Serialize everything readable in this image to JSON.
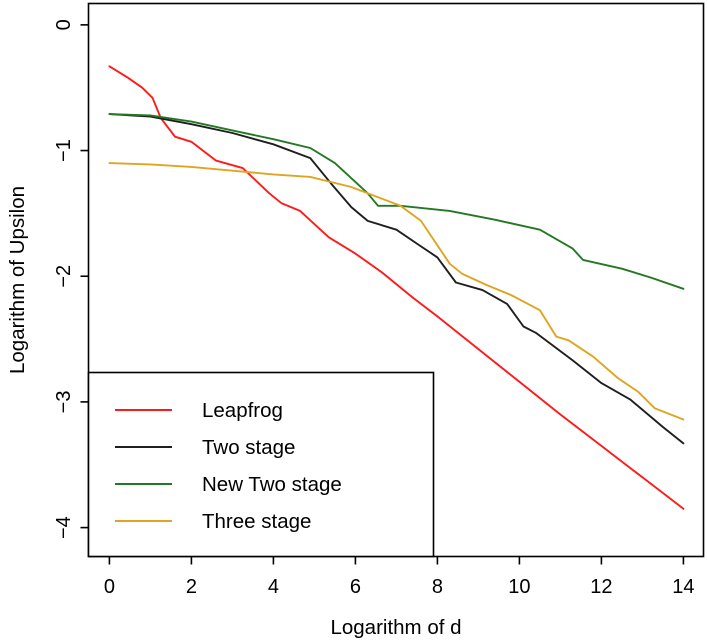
{
  "figure": {
    "background": "#ffffff",
    "axis_color": "#000000"
  },
  "chart_data": {
    "type": "line",
    "title": "",
    "xlabel": "Logarithm of d",
    "ylabel": "Logarithm of Upsilon",
    "xlim": [
      -0.51,
      14.49
    ],
    "ylim": [
      -4.23,
      0.17
    ],
    "grid": false,
    "xticks": {
      "values": [
        0,
        2,
        4,
        6,
        8,
        10,
        12,
        14
      ],
      "labels": [
        "0",
        "2",
        "4",
        "6",
        "8",
        "10",
        "12",
        "14"
      ]
    },
    "yticks": {
      "values": [
        0,
        -1,
        -2,
        -3,
        -4
      ],
      "labels": [
        "0",
        "−1",
        "−2",
        "−3",
        "−4"
      ]
    },
    "legend": {
      "position": "bottom-left",
      "border": true
    },
    "series": [
      {
        "name": "Leapfrog",
        "color": "#ff1a1a",
        "points": [
          [
            0,
            -0.33
          ],
          [
            0.45,
            -0.42
          ],
          [
            0.8,
            -0.5
          ],
          [
            1.05,
            -0.58
          ],
          [
            1.25,
            -0.74
          ],
          [
            1.6,
            -0.89
          ],
          [
            2,
            -0.93
          ],
          [
            2.6,
            -1.08
          ],
          [
            3.25,
            -1.14
          ],
          [
            3.9,
            -1.34
          ],
          [
            4.2,
            -1.42
          ],
          [
            4.65,
            -1.48
          ],
          [
            5.35,
            -1.69
          ],
          [
            6,
            -1.82
          ],
          [
            6.65,
            -1.97
          ],
          [
            7.4,
            -2.17
          ],
          [
            8,
            -2.32
          ],
          [
            9,
            -2.58
          ],
          [
            10,
            -2.84
          ],
          [
            11,
            -3.1
          ],
          [
            12,
            -3.35
          ],
          [
            13,
            -3.6
          ],
          [
            14,
            -3.85
          ]
        ]
      },
      {
        "name": "Two stage",
        "color": "#1f1f1f",
        "points": [
          [
            0,
            -0.71
          ],
          [
            1,
            -0.73
          ],
          [
            2,
            -0.79
          ],
          [
            3,
            -0.86
          ],
          [
            4,
            -0.95
          ],
          [
            4.9,
            -1.06
          ],
          [
            5.4,
            -1.26
          ],
          [
            5.9,
            -1.45
          ],
          [
            6.3,
            -1.56
          ],
          [
            7,
            -1.63
          ],
          [
            7.5,
            -1.74
          ],
          [
            8,
            -1.85
          ],
          [
            8.45,
            -2.05
          ],
          [
            9.1,
            -2.11
          ],
          [
            9.7,
            -2.22
          ],
          [
            10.1,
            -2.4
          ],
          [
            10.4,
            -2.45
          ],
          [
            11.3,
            -2.67
          ],
          [
            12,
            -2.85
          ],
          [
            12.7,
            -2.98
          ],
          [
            13.5,
            -3.2
          ],
          [
            14,
            -3.33
          ]
        ]
      },
      {
        "name": "New Two stage",
        "color": "#237823",
        "points": [
          [
            0,
            -0.71
          ],
          [
            1,
            -0.72
          ],
          [
            2,
            -0.77
          ],
          [
            3,
            -0.84
          ],
          [
            4,
            -0.91
          ],
          [
            4.9,
            -0.98
          ],
          [
            5.5,
            -1.1
          ],
          [
            6.3,
            -1.34
          ],
          [
            6.55,
            -1.44
          ],
          [
            7.1,
            -1.44
          ],
          [
            8.3,
            -1.48
          ],
          [
            9.4,
            -1.55
          ],
          [
            10.5,
            -1.63
          ],
          [
            11.3,
            -1.78
          ],
          [
            11.55,
            -1.87
          ],
          [
            12.5,
            -1.94
          ],
          [
            13.2,
            -2.01
          ],
          [
            14,
            -2.1
          ]
        ]
      },
      {
        "name": "Three stage",
        "color": "#dfa520",
        "points": [
          [
            0,
            -1.1
          ],
          [
            1,
            -1.11
          ],
          [
            2,
            -1.13
          ],
          [
            3,
            -1.16
          ],
          [
            4,
            -1.19
          ],
          [
            4.9,
            -1.21
          ],
          [
            5.9,
            -1.29
          ],
          [
            7.1,
            -1.44
          ],
          [
            7.6,
            -1.56
          ],
          [
            8.3,
            -1.9
          ],
          [
            8.6,
            -1.98
          ],
          [
            9.2,
            -2.07
          ],
          [
            9.8,
            -2.15
          ],
          [
            10.5,
            -2.27
          ],
          [
            10.9,
            -2.48
          ],
          [
            11.2,
            -2.51
          ],
          [
            11.8,
            -2.64
          ],
          [
            12.4,
            -2.81
          ],
          [
            12.9,
            -2.92
          ],
          [
            13.3,
            -3.05
          ],
          [
            14,
            -3.14
          ]
        ]
      }
    ]
  }
}
